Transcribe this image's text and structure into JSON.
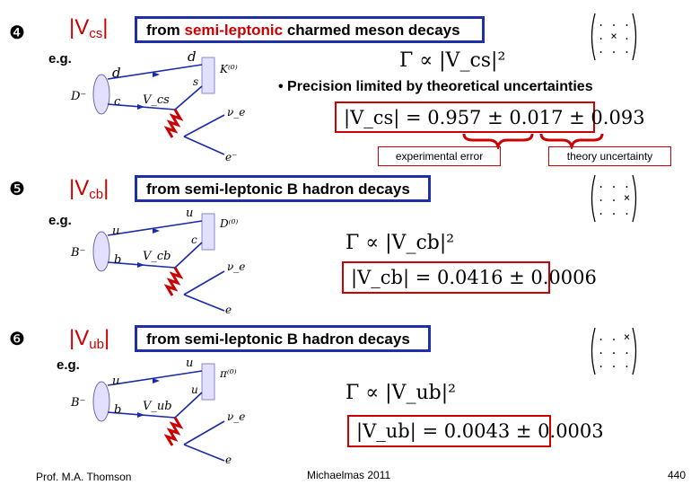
{
  "sections": [
    {
      "bullet": "4",
      "label_main": "|V",
      "label_sub": "cs",
      "label_end": "|",
      "title_pre": "from ",
      "title_red": "semi-leptonic",
      "title_post": " charmed meson decays",
      "eg": "e.g.",
      "formula": "Γ ∝ |V_cs|²",
      "matrix": [
        ". . .",
        ". × .",
        ". . ."
      ],
      "diagram": {
        "left": "D⁻",
        "top_in": "d",
        "top_out": "d",
        "mid": "s",
        "bot_in": "c",
        "coupling": "V_cs",
        "meson": "K⁽⁰⁾",
        "nu": "ν_e",
        "lep": "e⁻"
      }
    },
    {
      "bullet": "5",
      "label_main": "|V",
      "label_sub": "cb",
      "label_end": "|",
      "title_pre": "from semi-leptonic B hadron decays",
      "eg": "e.g.",
      "formula": "Γ ∝ |V_cb|²",
      "result": "|V_cb| = 0.0416 ± 0.0006",
      "matrix": [
        ". . .",
        ". . ×",
        ". . ."
      ],
      "diagram": {
        "left": "B⁻",
        "top_in": "u",
        "top_out": "u",
        "mid": "c",
        "bot_in": "b",
        "coupling": "V_cb",
        "meson": "D⁽⁰⁾",
        "nu": "ν_e",
        "lep": "e"
      }
    },
    {
      "bullet": "6",
      "label_main": "|V",
      "label_sub": "ub",
      "label_end": "|",
      "title_pre": "from semi-leptonic B hadron decays",
      "eg": "e.g.",
      "formula": "Γ ∝ |V_ub|²",
      "result": "|V_ub| = 0.0043 ± 0.0003",
      "matrix": [
        ". . ×",
        ". . .",
        ". . ."
      ],
      "diagram": {
        "left": "B⁻",
        "top_in": "u",
        "top_out": "u",
        "mid": "u",
        "bot_in": "b",
        "coupling": "V_ub",
        "meson": "π⁽⁰⁾",
        "nu": "ν_e",
        "lep": "e"
      }
    }
  ],
  "precision_note": "• Precision limited by theoretical uncertainties",
  "vcs_result": "|V_cs| = 0.957 ± 0.017 ± 0.093",
  "exp_error": "experimental error",
  "theory_error": "theory uncertainty",
  "footer": {
    "author": "Prof. M.A. Thomson",
    "term": "Michaelmas 2011",
    "page": "440"
  },
  "colors": {
    "title_border": "#1f2fa8",
    "accent_red": "#cc0000",
    "quark_line": "#1a2aa8",
    "w_boson": "#cc0000",
    "blob_fill": "#e3e0ff"
  }
}
